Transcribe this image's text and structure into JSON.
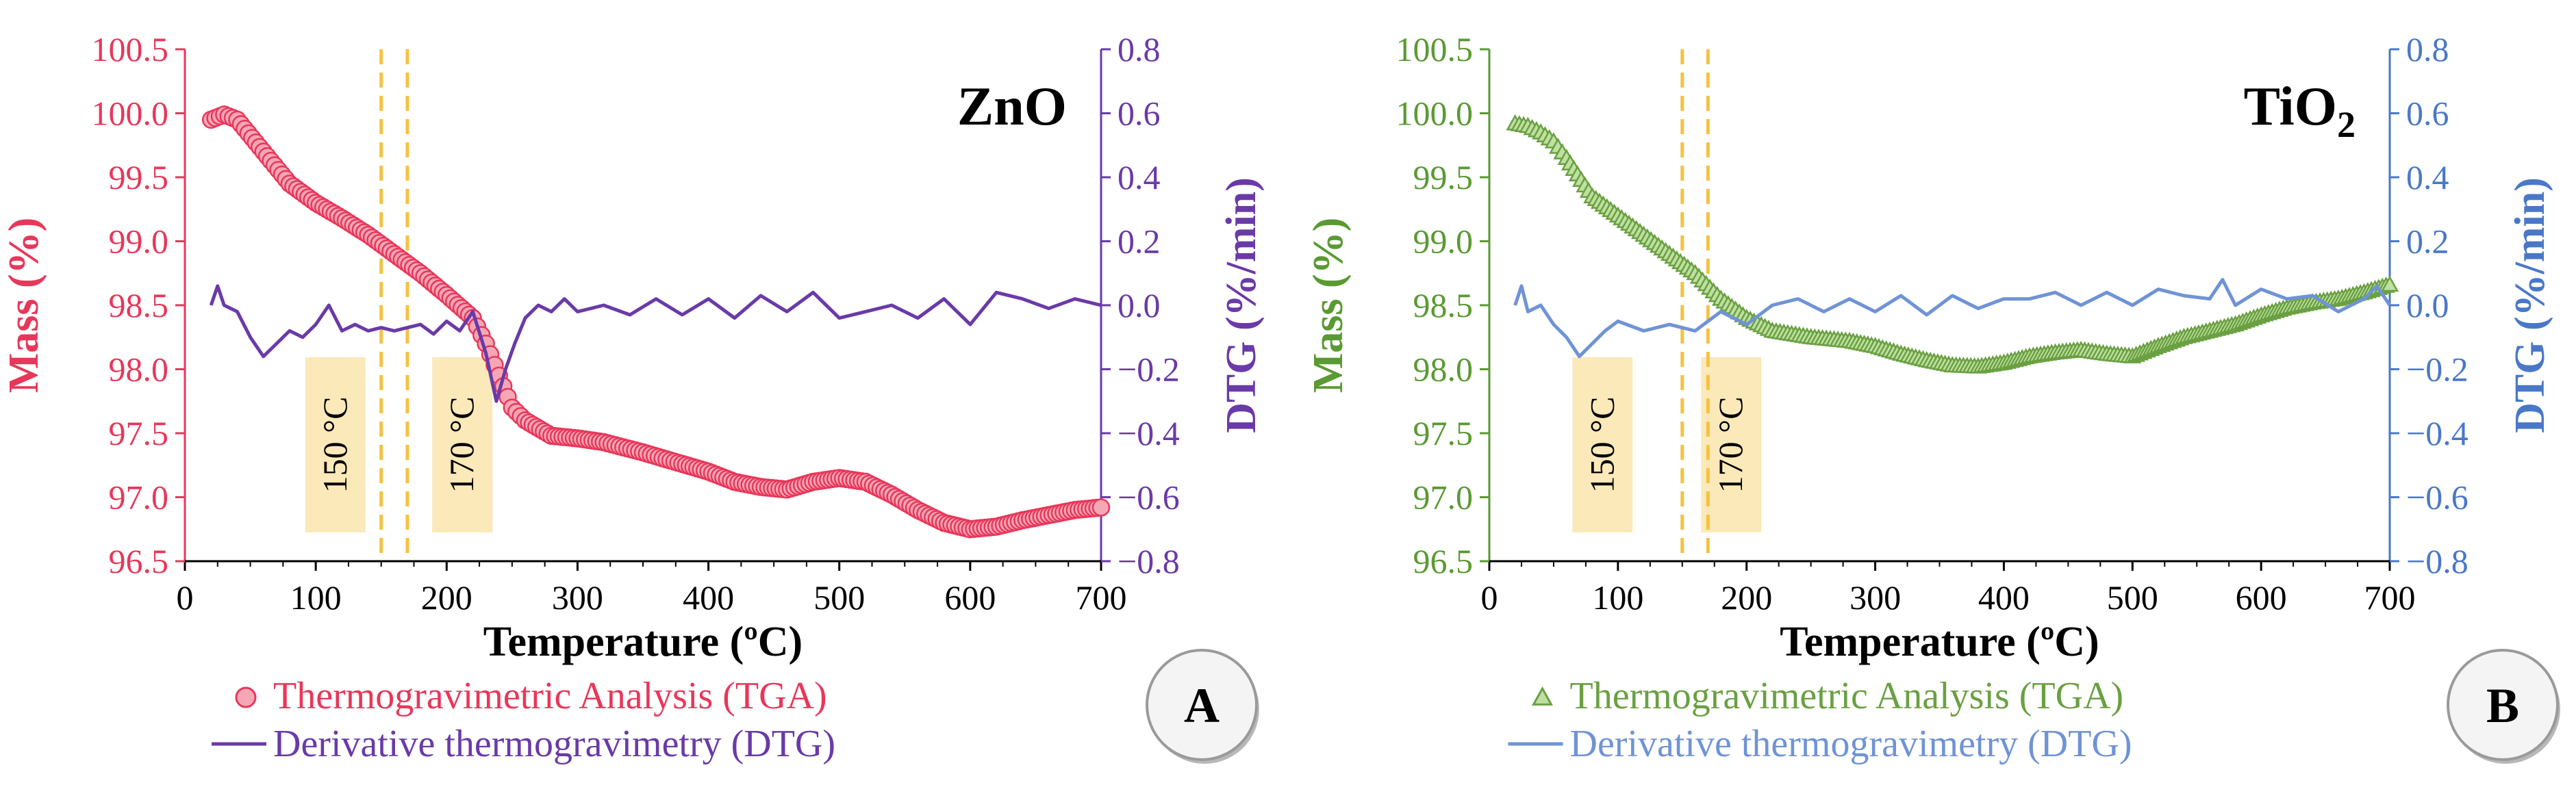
{
  "chart_data": [
    {
      "type": "line",
      "panel_label": "A",
      "title": "ZnO",
      "title_main": "ZnO",
      "title_sub": "",
      "xlabel": "Temperature (ºC)",
      "ylabel_left": "Mass (%)",
      "ylabel_right": "DTG (%/min)",
      "xlim": [
        0,
        700
      ],
      "ylim_left": [
        96.5,
        100.5
      ],
      "ylim_right": [
        -0.8,
        0.8
      ],
      "x_ticks": [
        "0",
        "100",
        "200",
        "300",
        "400",
        "500",
        "600",
        "700"
      ],
      "y_left_ticks": [
        "96.5",
        "97.0",
        "97.5",
        "98.0",
        "98.5",
        "99.0",
        "99.5",
        "100.0",
        "100.5"
      ],
      "y_right_ticks": [
        "−0.8",
        "−0.6",
        "−0.4",
        "−0.2",
        "0.0",
        "0.2",
        "0.4",
        "0.6",
        "0.8"
      ],
      "colors": {
        "tga": "#e8375a",
        "tga_fill": "#f5a7b6",
        "dtg": "#6a3aa8",
        "left_axis": "#e8375a",
        "right_axis": "#6a3aa8",
        "marker": "#f5c242",
        "box": "#fbe9b9"
      },
      "markers": [
        {
          "x": 150,
          "label": "150 °C",
          "box_x": 115
        },
        {
          "x": 170,
          "label": "170 °C",
          "box_x": 212
        }
      ],
      "series": [
        {
          "name": "Thermogravimetric Analysis (TGA)",
          "axis": "left",
          "style": "circle",
          "x": [
            20,
            30,
            40,
            60,
            80,
            100,
            120,
            140,
            160,
            180,
            200,
            220,
            230,
            240,
            250,
            260,
            280,
            300,
            320,
            350,
            380,
            400,
            420,
            440,
            460,
            480,
            500,
            520,
            540,
            560,
            580,
            600,
            620,
            640,
            660,
            680,
            700
          ],
          "values": [
            99.95,
            99.99,
            99.95,
            99.7,
            99.45,
            99.3,
            99.18,
            99.05,
            98.9,
            98.75,
            98.58,
            98.4,
            98.2,
            97.95,
            97.7,
            97.6,
            97.48,
            97.46,
            97.43,
            97.35,
            97.26,
            97.2,
            97.12,
            97.08,
            97.06,
            97.12,
            97.15,
            97.12,
            97.02,
            96.9,
            96.8,
            96.75,
            96.77,
            96.82,
            96.86,
            96.9,
            96.92
          ]
        },
        {
          "name": "Derivative thermogravimetry (DTG)",
          "axis": "right",
          "style": "line",
          "x": [
            20,
            25,
            30,
            40,
            50,
            60,
            70,
            80,
            90,
            100,
            110,
            120,
            130,
            140,
            150,
            160,
            170,
            180,
            190,
            200,
            210,
            220,
            230,
            238,
            245,
            252,
            260,
            270,
            280,
            290,
            300,
            320,
            340,
            360,
            380,
            400,
            420,
            440,
            460,
            480,
            500,
            520,
            540,
            560,
            580,
            600,
            620,
            640,
            660,
            680,
            700
          ],
          "values": [
            0.0,
            0.06,
            0.0,
            -0.02,
            -0.1,
            -0.16,
            -0.12,
            -0.08,
            -0.1,
            -0.06,
            0.0,
            -0.08,
            -0.06,
            -0.08,
            -0.07,
            -0.08,
            -0.07,
            -0.06,
            -0.09,
            -0.05,
            -0.08,
            -0.02,
            -0.15,
            -0.3,
            -0.2,
            -0.12,
            -0.04,
            0.0,
            -0.02,
            0.02,
            -0.02,
            0.0,
            -0.03,
            0.02,
            -0.03,
            0.02,
            -0.04,
            0.03,
            -0.02,
            0.04,
            -0.04,
            -0.02,
            0.0,
            -0.04,
            0.02,
            -0.06,
            0.04,
            0.02,
            -0.01,
            0.02,
            0.0
          ]
        }
      ]
    },
    {
      "type": "line",
      "panel_label": "B",
      "title": "TiO2",
      "title_main": "TiO",
      "title_sub": "2",
      "xlabel": "Temperature (ºC)",
      "ylabel_left": "Mass (%)",
      "ylabel_right": "DTG (%/min)",
      "xlim": [
        0,
        700
      ],
      "ylim_left": [
        96.5,
        100.5
      ],
      "ylim_right": [
        -0.8,
        0.8
      ],
      "x_ticks": [
        "0",
        "100",
        "200",
        "300",
        "400",
        "500",
        "600",
        "700"
      ],
      "y_left_ticks": [
        "96.5",
        "97.0",
        "97.5",
        "98.0",
        "98.5",
        "99.0",
        "99.5",
        "100.0",
        "100.5"
      ],
      "y_right_ticks": [
        "−0.8",
        "−0.6",
        "−0.4",
        "−0.2",
        "0.0",
        "0.2",
        "0.4",
        "0.6",
        "0.8"
      ],
      "colors": {
        "tga": "#6aa042",
        "tga_fill": "#bfe0a0",
        "dtg": "#6f93d6",
        "left_axis": "#5a9a32",
        "right_axis": "#4a78c8",
        "marker": "#f5c242",
        "box": "#fbe9b9"
      },
      "markers": [
        {
          "x": 150,
          "label": "150 °C",
          "box_x": 88
        },
        {
          "x": 170,
          "label": "170 °C",
          "box_x": 188
        }
      ],
      "series": [
        {
          "name": "Thermogravimetric Analysis (TGA)",
          "axis": "left",
          "style": "triangle",
          "x": [
            20,
            30,
            40,
            50,
            60,
            80,
            100,
            120,
            140,
            160,
            180,
            200,
            220,
            250,
            280,
            300,
            320,
            340,
            360,
            380,
            400,
            420,
            440,
            460,
            480,
            500,
            520,
            540,
            560,
            580,
            600,
            620,
            640,
            660,
            680,
            700
          ],
          "values": [
            99.92,
            99.9,
            99.85,
            99.78,
            99.65,
            99.35,
            99.2,
            99.05,
            98.9,
            98.75,
            98.55,
            98.4,
            98.3,
            98.25,
            98.22,
            98.18,
            98.12,
            98.07,
            98.03,
            98.02,
            98.05,
            98.1,
            98.13,
            98.15,
            98.12,
            98.1,
            98.18,
            98.25,
            98.3,
            98.35,
            98.42,
            98.48,
            98.52,
            98.55,
            98.6,
            98.66
          ]
        },
        {
          "name": "Derivative thermogravimetry (DTG)",
          "axis": "right",
          "style": "line",
          "x": [
            20,
            25,
            30,
            40,
            50,
            60,
            70,
            80,
            90,
            100,
            120,
            140,
            160,
            180,
            200,
            220,
            240,
            260,
            280,
            300,
            320,
            340,
            360,
            380,
            400,
            420,
            440,
            460,
            480,
            500,
            520,
            540,
            560,
            570,
            580,
            600,
            620,
            640,
            660,
            680,
            690,
            700
          ],
          "values": [
            0.0,
            0.06,
            -0.02,
            0.0,
            -0.06,
            -0.1,
            -0.16,
            -0.12,
            -0.08,
            -0.05,
            -0.08,
            -0.06,
            -0.08,
            -0.02,
            -0.06,
            0.0,
            0.02,
            -0.02,
            0.02,
            -0.02,
            0.03,
            -0.03,
            0.03,
            -0.01,
            0.02,
            0.02,
            0.04,
            0.0,
            0.04,
            0.0,
            0.05,
            0.03,
            0.02,
            0.08,
            0.0,
            0.05,
            0.02,
            0.03,
            -0.02,
            0.02,
            0.06,
            0.0
          ]
        }
      ]
    }
  ]
}
